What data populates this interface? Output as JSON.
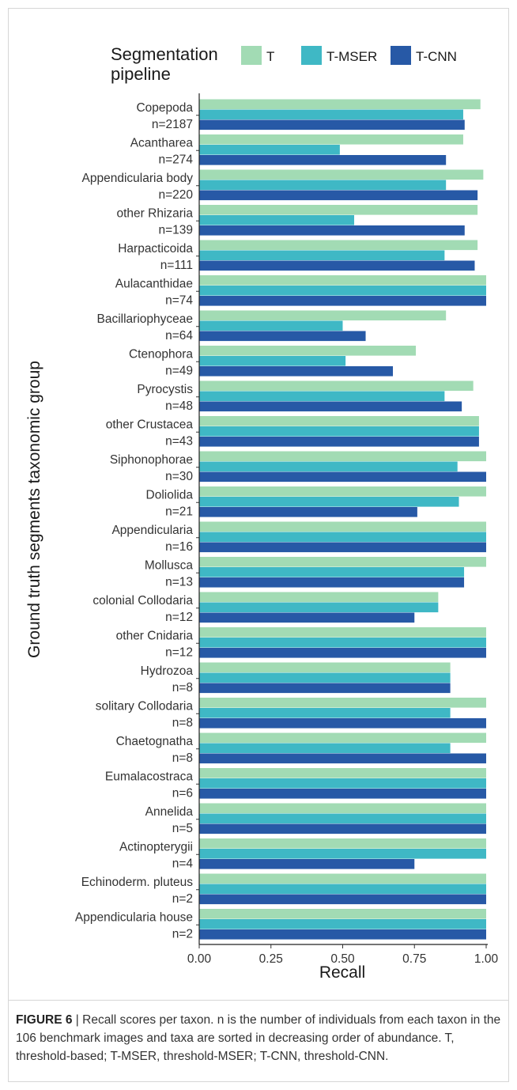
{
  "figure": {
    "label": "FIGURE 6",
    "caption": " | Recall scores per taxon. n is the number of individuals from each taxon in the 106 benchmark images and taxa are sorted in decreasing order of abundance. T, threshold-based; T-MSER, threshold-MSER; T-CNN, threshold-CNN."
  },
  "chart_data": {
    "type": "bar",
    "orientation": "horizontal",
    "xlabel": "Recall",
    "ylabel": "Ground truth segments taxonomic group",
    "xlim": [
      0,
      1
    ],
    "xticks": [
      "0.00",
      "0.25",
      "0.50",
      "0.75",
      "1.00"
    ],
    "grid": false,
    "legend": {
      "title_line1": "Segmentation",
      "title_line2": "pipeline",
      "position": "top"
    },
    "categories": [
      {
        "name": "Copepoda",
        "n": "n=2187"
      },
      {
        "name": "Acantharea",
        "n": "n=274"
      },
      {
        "name": "Appendicularia body",
        "n": "n=220"
      },
      {
        "name": "other Rhizaria",
        "n": "n=139"
      },
      {
        "name": "Harpacticoida",
        "n": "n=111"
      },
      {
        "name": "Aulacanthidae",
        "n": "n=74"
      },
      {
        "name": "Bacillariophyceae",
        "n": "n=64"
      },
      {
        "name": "Ctenophora",
        "n": "n=49"
      },
      {
        "name": "Pyrocystis",
        "n": "n=48"
      },
      {
        "name": "other Crustacea",
        "n": "n=43"
      },
      {
        "name": "Siphonophorae",
        "n": "n=30"
      },
      {
        "name": "Doliolida",
        "n": "n=21"
      },
      {
        "name": "Appendicularia",
        "n": "n=16"
      },
      {
        "name": "Mollusca",
        "n": "n=13"
      },
      {
        "name": "colonial Collodaria",
        "n": "n=12"
      },
      {
        "name": "other Cnidaria",
        "n": "n=12"
      },
      {
        "name": "Hydrozoa",
        "n": "n=8"
      },
      {
        "name": "solitary Collodaria",
        "n": "n=8"
      },
      {
        "name": "Chaetognatha",
        "n": "n=8"
      },
      {
        "name": "Eumalacostraca",
        "n": "n=6"
      },
      {
        "name": "Annelida",
        "n": "n=5"
      },
      {
        "name": "Actinopterygii",
        "n": "n=4"
      },
      {
        "name": "Echinoderm. pluteus",
        "n": "n=2"
      },
      {
        "name": "Appendicularia house",
        "n": "n=2"
      }
    ],
    "series": [
      {
        "name": "T",
        "color": "#a2dbb4",
        "values": [
          0.98,
          0.92,
          0.99,
          0.97,
          0.97,
          1.0,
          0.86,
          0.755,
          0.955,
          0.975,
          1.0,
          1.0,
          1.0,
          1.0,
          0.833,
          1.0,
          0.875,
          1.0,
          1.0,
          1.0,
          1.0,
          1.0,
          1.0,
          1.0
        ]
      },
      {
        "name": "T-MSER",
        "color": "#3fb8c5",
        "values": [
          0.92,
          0.49,
          0.86,
          0.54,
          0.855,
          1.0,
          0.5,
          0.51,
          0.855,
          0.975,
          0.9,
          0.905,
          1.0,
          0.923,
          0.833,
          1.0,
          0.875,
          0.875,
          0.875,
          1.0,
          1.0,
          1.0,
          1.0,
          1.0
        ]
      },
      {
        "name": "T-CNN",
        "color": "#2759a6",
        "values": [
          0.925,
          0.86,
          0.97,
          0.925,
          0.96,
          1.0,
          0.58,
          0.675,
          0.915,
          0.975,
          1.0,
          0.76,
          1.0,
          0.923,
          0.75,
          1.0,
          0.875,
          1.0,
          1.0,
          1.0,
          1.0,
          0.75,
          1.0,
          1.0
        ]
      }
    ]
  }
}
